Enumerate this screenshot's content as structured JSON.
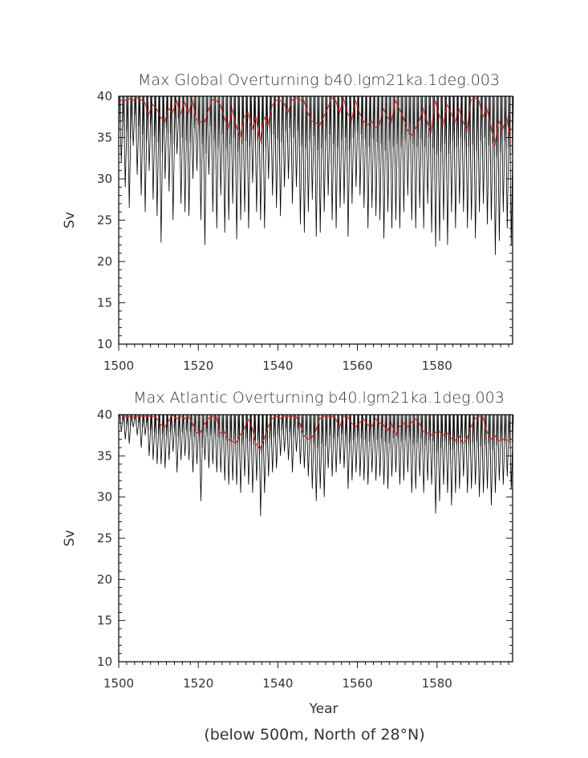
{
  "chart_data": [
    {
      "type": "line",
      "title": "Max Global Overturning b40.lgm21ka.1deg.003",
      "xlabel": "",
      "ylabel": "Sv",
      "xlim": [
        1500,
        1599
      ],
      "ylim": [
        10,
        40
      ],
      "xticks": [
        1500,
        1520,
        1540,
        1560,
        1580
      ],
      "yticks": [
        10,
        15,
        20,
        25,
        30,
        35,
        40
      ],
      "grid": false,
      "series": [
        {
          "color": "#000000",
          "style": "monthly",
          "values": [
            32.0,
            29.0,
            26.5,
            34.0,
            30.5,
            28.0,
            26.0,
            31.0,
            27.5,
            25.5,
            22.3,
            30.0,
            28.5,
            25.0,
            33.0,
            27.0,
            26.0,
            25.5,
            30.0,
            31.0,
            25.0,
            22.0,
            30.5,
            26.0,
            24.0,
            28.0,
            23.5,
            25.0,
            27.0,
            22.7,
            25.0,
            26.0,
            24.0,
            29.5,
            26.0,
            25.0,
            24.0,
            30.0,
            28.0,
            26.5,
            25.5,
            29.0,
            30.0,
            27.0,
            29.0,
            24.5,
            23.5,
            26.0,
            27.5,
            23.0,
            23.5,
            26.0,
            28.0,
            25.0,
            24.0,
            26.5,
            27.0,
            23.0,
            27.0,
            29.0,
            28.0,
            26.5,
            24.0,
            26.5,
            25.5,
            25.0,
            22.8,
            26.0,
            24.0,
            25.0,
            24.0,
            26.0,
            28.0,
            25.0,
            24.0,
            26.5,
            24.0,
            27.0,
            23.5,
            21.8,
            22.5,
            25.0,
            22.0,
            26.0,
            24.0,
            27.0,
            26.0,
            24.0,
            25.0,
            22.8,
            26.0,
            27.0,
            24.5,
            25.0,
            20.8,
            22.5,
            26.0,
            24.0,
            22.0
          ]
        },
        {
          "color": "#cc2222",
          "style": "annual",
          "values": [
            39.5,
            39.5,
            39.7,
            39.5,
            39.8,
            39.6,
            39.3,
            37.8,
            39.0,
            38.5,
            37.5,
            36.8,
            38.5,
            38.0,
            39.5,
            37.8,
            39.3,
            38.0,
            39.5,
            37.2,
            36.9,
            36.8,
            38.2,
            39.6,
            39.5,
            39.0,
            37.5,
            36.0,
            38.5,
            36.5,
            35.0,
            37.5,
            38.0,
            36.0,
            37.5,
            34.5,
            37.5,
            36.5,
            38.8,
            39.5,
            39.5,
            39.2,
            38.0,
            39.5,
            39.8,
            39.6,
            39.5,
            38.0,
            37.0,
            36.8,
            36.5,
            37.5,
            38.5,
            39.8,
            39.5,
            38.0,
            39.7,
            38.0,
            37.0,
            39.5,
            38.0,
            37.0,
            36.5,
            37.0,
            36.2,
            36.5,
            38.5,
            37.5,
            36.8,
            39.5,
            38.5,
            37.5,
            36.0,
            35.2,
            36.0,
            37.0,
            38.5,
            37.0,
            35.5,
            39.5,
            37.8,
            36.5,
            39.0,
            38.0,
            36.8,
            38.5,
            37.0,
            35.8,
            39.5,
            39.8,
            39.5,
            37.5,
            38.5,
            36.5,
            34.0,
            37.0,
            36.0,
            37.5,
            34.5
          ]
        }
      ]
    },
    {
      "type": "line",
      "title": "Max Atlantic Overturning b40.lgm21ka.1deg.003",
      "xlabel": "Year",
      "ylabel": "Sv",
      "xlim": [
        1500,
        1599
      ],
      "ylim": [
        10,
        40
      ],
      "xticks": [
        1500,
        1520,
        1540,
        1560,
        1580
      ],
      "yticks": [
        10,
        15,
        20,
        25,
        30,
        35,
        40
      ],
      "grid": false,
      "series": [
        {
          "color": "#000000",
          "style": "monthly",
          "values": [
            38.0,
            37.0,
            36.5,
            38.5,
            37.5,
            36.0,
            37.5,
            35.0,
            34.5,
            34.0,
            34.0,
            33.5,
            34.5,
            35.5,
            33.0,
            34.5,
            35.0,
            34.5,
            33.0,
            34.0,
            29.5,
            34.5,
            33.5,
            34.0,
            33.0,
            33.0,
            32.0,
            31.5,
            32.0,
            31.5,
            30.5,
            32.5,
            31.5,
            30.5,
            32.0,
            27.7,
            30.5,
            32.5,
            33.0,
            33.5,
            35.0,
            35.5,
            34.5,
            33.0,
            35.5,
            34.0,
            33.5,
            32.5,
            31.0,
            29.5,
            31.0,
            30.0,
            33.5,
            32.5,
            33.0,
            34.0,
            33.5,
            31.0,
            32.0,
            33.0,
            32.5,
            32.0,
            31.5,
            33.0,
            32.0,
            32.5,
            31.5,
            31.0,
            32.5,
            33.0,
            31.5,
            32.0,
            33.0,
            30.5,
            31.0,
            32.5,
            30.5,
            32.0,
            31.5,
            28.0,
            29.5,
            31.5,
            30.5,
            29.0,
            30.5,
            31.0,
            32.5,
            30.5,
            31.0,
            31.5,
            30.0,
            30.5,
            31.0,
            29.0,
            30.5,
            32.0,
            31.5,
            32.5,
            31.0
          ]
        },
        {
          "color": "#cc2222",
          "style": "annual",
          "values": [
            40.0,
            39.8,
            39.8,
            39.7,
            39.8,
            39.8,
            39.8,
            39.8,
            39.8,
            39.6,
            38.8,
            38.5,
            39.2,
            40.0,
            39.5,
            39.8,
            39.5,
            39.8,
            39.0,
            37.8,
            37.8,
            38.8,
            39.5,
            39.8,
            39.8,
            37.8,
            38.0,
            37.0,
            36.8,
            36.5,
            37.5,
            38.2,
            39.5,
            38.5,
            36.5,
            35.8,
            37.0,
            38.5,
            39.5,
            39.8,
            39.5,
            39.8,
            39.8,
            39.8,
            39.8,
            39.0,
            37.5,
            37.0,
            37.2,
            38.0,
            39.5,
            39.8,
            39.8,
            39.8,
            39.5,
            38.5,
            39.8,
            39.8,
            39.0,
            38.5,
            39.0,
            39.5,
            38.8,
            38.5,
            39.5,
            39.0,
            38.8,
            38.0,
            39.0,
            37.5,
            38.5,
            39.0,
            38.5,
            39.0,
            39.5,
            39.0,
            38.0,
            37.8,
            37.5,
            37.8,
            38.0,
            37.5,
            37.8,
            37.2,
            36.8,
            37.5,
            36.5,
            37.0,
            38.5,
            39.5,
            39.8,
            39.8,
            38.0,
            37.0,
            37.5,
            36.8,
            37.0,
            37.0,
            36.5
          ]
        }
      ]
    }
  ],
  "footer_note": "(below 500m, North of 28°N)"
}
